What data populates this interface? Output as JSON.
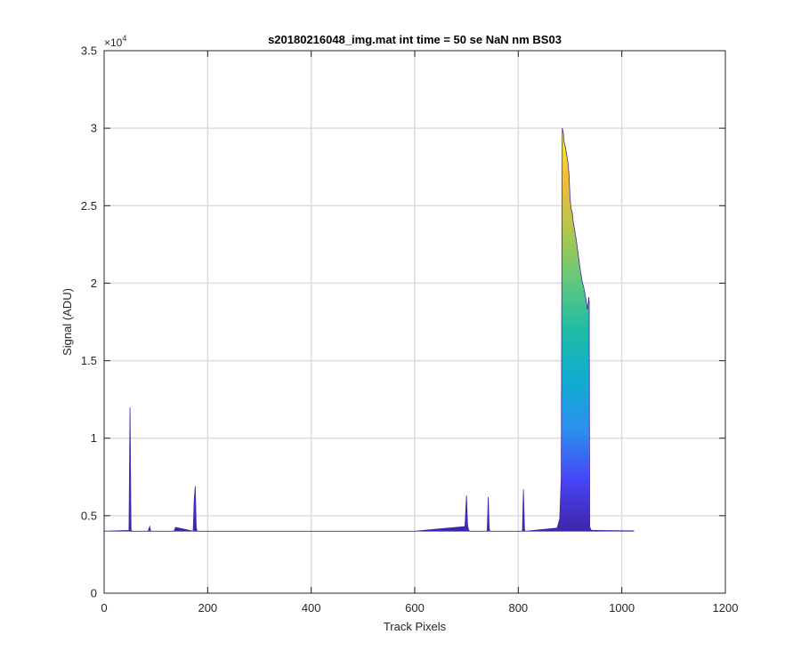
{
  "chart_data": {
    "type": "area",
    "title": "s20180216048_img.mat int time = 50 se  NaN nm BS03",
    "xlabel": "Track Pixels",
    "ylabel": "Signal (ADU)",
    "xlim": [
      0,
      1200
    ],
    "ylim": [
      0,
      35000
    ],
    "x_ticks": [
      0,
      200,
      400,
      600,
      800,
      1000,
      1200
    ],
    "x_tick_labels": [
      "0",
      "200",
      "400",
      "600",
      "800",
      "1000",
      "1200"
    ],
    "y_ticks": [
      0,
      5000,
      10000,
      15000,
      20000,
      25000,
      30000,
      35000
    ],
    "y_tick_labels": [
      "0",
      "0.5",
      "1",
      "1.5",
      "2",
      "2.5",
      "3",
      "3.5"
    ],
    "y_exponent_base": "×10",
    "y_exponent_power": "4",
    "grid": true,
    "colormap": "parula",
    "colormap_stops": [
      "#3e26a8",
      "#4743f6",
      "#2d8fef",
      "#0fadd0",
      "#1fbca5",
      "#64c87a",
      "#b5c64c",
      "#f5bb3c",
      "#f8fa0d"
    ],
    "baseline": 4000,
    "x": [
      0,
      48,
      50,
      52,
      54,
      85,
      88,
      90,
      135,
      138,
      172,
      174,
      176,
      178,
      180,
      300,
      600,
      697,
      700,
      702,
      704,
      706,
      740,
      742,
      744,
      746,
      808,
      810,
      812,
      814,
      875,
      880,
      883,
      885,
      887,
      889,
      891,
      894,
      896,
      898,
      900,
      902,
      904,
      906,
      908,
      910,
      912,
      914,
      916,
      918,
      920,
      922,
      924,
      926,
      928,
      930,
      932,
      934,
      936,
      937,
      938,
      940,
      942,
      950,
      1000,
      1023
    ],
    "y": [
      4000,
      4050,
      12000,
      4100,
      4000,
      4000,
      4300,
      4000,
      4000,
      4250,
      4000,
      6000,
      6900,
      4200,
      4000,
      4000,
      4000,
      4300,
      6300,
      4400,
      4100,
      4000,
      4000,
      6200,
      4100,
      4000,
      4000,
      6700,
      4100,
      4000,
      4200,
      4800,
      7500,
      30000,
      29700,
      29000,
      28800,
      28200,
      27800,
      27000,
      25500,
      24800,
      24600,
      24000,
      23600,
      23200,
      22800,
      22300,
      21800,
      21300,
      20800,
      20400,
      20000,
      19800,
      19500,
      19100,
      18700,
      18300,
      19100,
      18800,
      4300,
      4100,
      4050,
      4050,
      4030,
      4030
    ]
  }
}
